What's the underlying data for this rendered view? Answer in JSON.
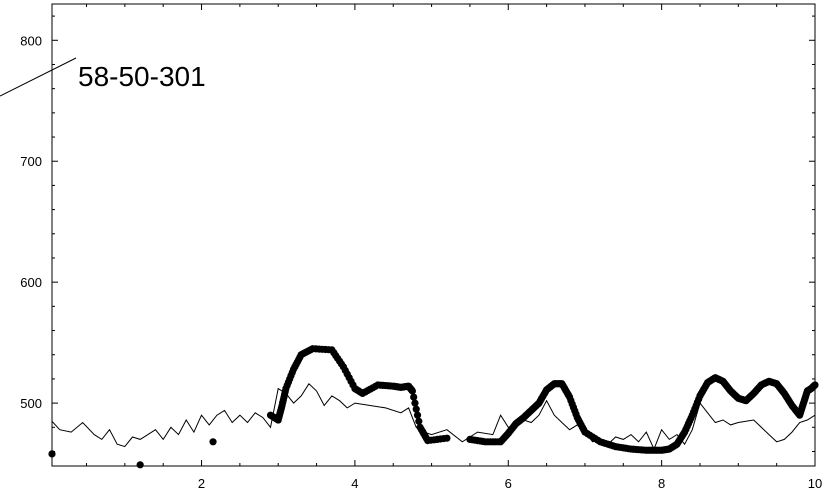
{
  "chart_data": {
    "type": "scatter",
    "title": "",
    "xlabel": "",
    "ylabel": "",
    "xlim": [
      0.05,
      10.0
    ],
    "ylim": [
      448,
      830
    ],
    "xticks": [
      2,
      4,
      6,
      8,
      10
    ],
    "yticks": [
      500,
      600,
      700,
      800
    ],
    "xtick_labels": [
      "2",
      "4",
      "6",
      "8",
      "10"
    ],
    "ytick_labels": [
      "500",
      "600",
      "700",
      "800"
    ],
    "grid": false,
    "annotation": {
      "text": "58-50-301",
      "x": 0.8,
      "y": 788
    },
    "series": [
      {
        "name": "",
        "kind": "line",
        "color": "#000000",
        "x": [
          0.05,
          0.15,
          0.3,
          0.45,
          0.6,
          0.7,
          0.8,
          0.9,
          1.0,
          1.1,
          1.2,
          1.3,
          1.4,
          1.5,
          1.6,
          1.7,
          1.8,
          1.9,
          2.0,
          2.1,
          2.2,
          2.3,
          2.4,
          2.5,
          2.6,
          2.7,
          2.8,
          2.9,
          3.0,
          3.1,
          3.2,
          3.3,
          3.4,
          3.5,
          3.6,
          3.7,
          3.8,
          3.9,
          4.0,
          4.2,
          4.4,
          4.6,
          4.7,
          4.8,
          4.9,
          5.0,
          5.2,
          5.4,
          5.6,
          5.8,
          5.9,
          6.0,
          6.1,
          6.2,
          6.3,
          6.4,
          6.5,
          6.6,
          6.7,
          6.8,
          6.9,
          7.0,
          7.1,
          7.2,
          7.3,
          7.4,
          7.5,
          7.6,
          7.7,
          7.8,
          7.9,
          8.0,
          8.1,
          8.2,
          8.3,
          8.4,
          8.5,
          8.6,
          8.7,
          8.8,
          8.9,
          9.0,
          9.2,
          9.4,
          9.5,
          9.6,
          9.7,
          9.8,
          9.9,
          10.0
        ],
        "y": [
          485,
          478,
          476,
          484,
          474,
          470,
          478,
          466,
          464,
          472,
          470,
          474,
          478,
          470,
          480,
          474,
          486,
          476,
          490,
          482,
          490,
          494,
          484,
          490,
          484,
          492,
          488,
          480,
          512,
          508,
          500,
          506,
          516,
          510,
          498,
          506,
          502,
          496,
          500,
          498,
          496,
          492,
          496,
          480,
          476,
          474,
          478,
          468,
          476,
          474,
          490,
          480,
          482,
          486,
          484,
          490,
          502,
          490,
          484,
          478,
          482,
          476,
          468,
          470,
          466,
          472,
          470,
          474,
          468,
          476,
          462,
          478,
          470,
          474,
          466,
          478,
          500,
          492,
          484,
          486,
          482,
          484,
          486,
          474,
          468,
          470,
          476,
          484,
          486,
          490
        ]
      },
      {
        "name": "",
        "kind": "markers",
        "color": "#000000",
        "x": [
          0.05,
          1.2,
          2.15,
          2.9,
          3.0,
          3.05,
          3.1,
          3.2,
          3.3,
          3.45,
          3.7,
          3.85,
          4.0,
          4.1,
          4.3,
          4.5,
          4.6,
          4.7,
          4.75,
          4.85,
          4.95,
          5.2,
          5.5,
          5.7,
          5.9,
          6.0,
          6.1,
          6.2,
          6.3,
          6.4,
          6.5,
          6.6,
          6.7,
          6.8,
          6.9,
          7.0,
          7.2,
          7.4,
          7.6,
          7.8,
          8.0,
          8.1,
          8.2,
          8.3,
          8.4,
          8.5,
          8.6,
          8.7,
          8.8,
          8.9,
          9.0,
          9.1,
          9.2,
          9.3,
          9.4,
          9.5,
          9.6,
          9.7,
          9.8,
          9.85,
          9.9,
          9.95,
          10.0
        ],
        "y": [
          458,
          449,
          468,
          490,
          486,
          498,
          512,
          528,
          540,
          545,
          544,
          530,
          512,
          508,
          515,
          514,
          513,
          514,
          510,
          480,
          469,
          471,
          470,
          468,
          468,
          475,
          483,
          488,
          494,
          500,
          511,
          516,
          516,
          505,
          488,
          476,
          468,
          464,
          462,
          461,
          461,
          462,
          466,
          476,
          490,
          506,
          517,
          521,
          518,
          510,
          504,
          502,
          508,
          515,
          518,
          516,
          508,
          498,
          490,
          500,
          510,
          512,
          515
        ]
      }
    ]
  }
}
